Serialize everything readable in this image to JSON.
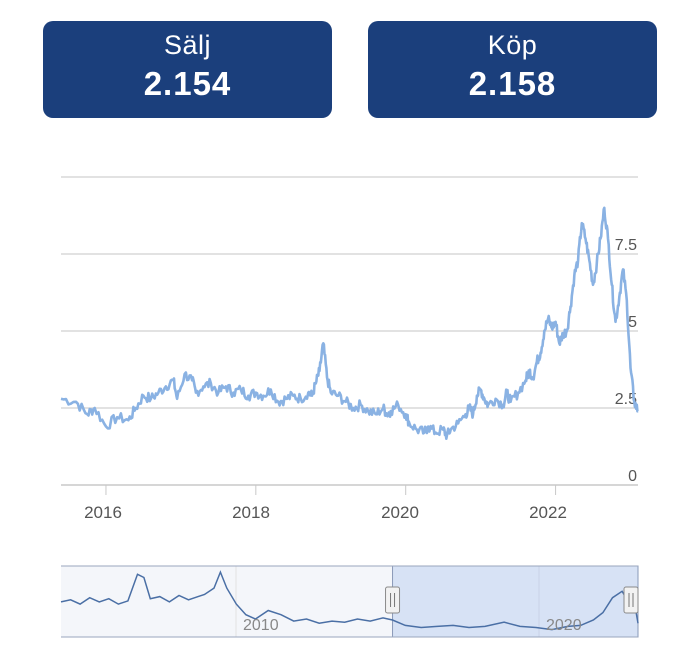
{
  "quote": {
    "sell": {
      "label": "Sälj",
      "value": "2.154"
    },
    "buy": {
      "label": "Köp",
      "value": "2.158"
    }
  },
  "colors": {
    "box": "#1b3f7c",
    "line": "#8ab2e3",
    "navigator_line": "#4a6fa5",
    "navigator_selection": "#d7e2f5",
    "grid": "#d8d8d8",
    "axis_text": "#555555"
  },
  "chart_data": {
    "type": "line",
    "title": "",
    "xlabel": "",
    "ylabel": "",
    "x_range": [
      2015.4,
      2023.1
    ],
    "ylim": [
      0,
      10
    ],
    "y_ticks": [
      "0",
      "2.5",
      "5",
      "7.5"
    ],
    "x_ticks": [
      "2016",
      "2018",
      "2020",
      "2022"
    ],
    "grid": true,
    "series": [
      {
        "points": [
          [
            2015.4,
            2.8
          ],
          [
            2015.6,
            2.7
          ],
          [
            2015.75,
            2.3
          ],
          [
            2015.85,
            2.5
          ],
          [
            2016.0,
            1.9
          ],
          [
            2016.15,
            2.2
          ],
          [
            2016.3,
            2.1
          ],
          [
            2016.4,
            2.5
          ],
          [
            2016.5,
            2.9
          ],
          [
            2016.6,
            2.8
          ],
          [
            2016.7,
            3.0
          ],
          [
            2016.8,
            3.2
          ],
          [
            2016.9,
            3.4
          ],
          [
            2016.95,
            2.8
          ],
          [
            2017.05,
            3.6
          ],
          [
            2017.15,
            3.4
          ],
          [
            2017.2,
            3.0
          ],
          [
            2017.3,
            3.2
          ],
          [
            2017.4,
            3.3
          ],
          [
            2017.5,
            3.0
          ],
          [
            2017.6,
            3.2
          ],
          [
            2017.7,
            3.0
          ],
          [
            2017.8,
            3.1
          ],
          [
            2017.9,
            2.9
          ],
          [
            2018.0,
            3.0
          ],
          [
            2018.1,
            2.9
          ],
          [
            2018.2,
            3.1
          ],
          [
            2018.3,
            2.7
          ],
          [
            2018.4,
            2.8
          ],
          [
            2018.5,
            2.9
          ],
          [
            2018.6,
            2.8
          ],
          [
            2018.7,
            3.0
          ],
          [
            2018.75,
            2.9
          ],
          [
            2018.8,
            3.3
          ],
          [
            2018.85,
            3.7
          ],
          [
            2018.9,
            4.6
          ],
          [
            2018.95,
            3.5
          ],
          [
            2019.0,
            3.0
          ],
          [
            2019.1,
            2.9
          ],
          [
            2019.2,
            2.7
          ],
          [
            2019.3,
            2.5
          ],
          [
            2019.4,
            2.6
          ],
          [
            2019.5,
            2.4
          ],
          [
            2019.6,
            2.3
          ],
          [
            2019.7,
            2.5
          ],
          [
            2019.75,
            2.3
          ],
          [
            2019.8,
            2.4
          ],
          [
            2019.9,
            2.6
          ],
          [
            2020.0,
            2.3
          ],
          [
            2020.05,
            2.0
          ],
          [
            2020.15,
            1.8
          ],
          [
            2020.25,
            1.7
          ],
          [
            2020.3,
            1.9
          ],
          [
            2020.4,
            1.7
          ],
          [
            2020.5,
            1.8
          ],
          [
            2020.55,
            1.6
          ],
          [
            2020.6,
            1.8
          ],
          [
            2020.7,
            2.0
          ],
          [
            2020.8,
            2.3
          ],
          [
            2020.85,
            2.5
          ],
          [
            2020.9,
            2.3
          ],
          [
            2020.95,
            2.9
          ],
          [
            2021.0,
            3.1
          ],
          [
            2021.05,
            2.8
          ],
          [
            2021.1,
            2.6
          ],
          [
            2021.2,
            2.8
          ],
          [
            2021.3,
            2.6
          ],
          [
            2021.35,
            3.0
          ],
          [
            2021.4,
            2.7
          ],
          [
            2021.5,
            3.0
          ],
          [
            2021.6,
            3.4
          ],
          [
            2021.65,
            3.7
          ],
          [
            2021.7,
            3.5
          ],
          [
            2021.75,
            4.0
          ],
          [
            2021.8,
            4.3
          ],
          [
            2021.85,
            5.0
          ],
          [
            2021.9,
            5.4
          ],
          [
            2021.95,
            5.1
          ],
          [
            2022.0,
            5.3
          ],
          [
            2022.05,
            4.6
          ],
          [
            2022.1,
            4.9
          ],
          [
            2022.15,
            5.0
          ],
          [
            2022.2,
            5.8
          ],
          [
            2022.25,
            6.8
          ],
          [
            2022.3,
            7.3
          ],
          [
            2022.35,
            8.5
          ],
          [
            2022.4,
            8.0
          ],
          [
            2022.45,
            7.3
          ],
          [
            2022.5,
            6.5
          ],
          [
            2022.55,
            7.2
          ],
          [
            2022.6,
            8.0
          ],
          [
            2022.65,
            9.0
          ],
          [
            2022.7,
            8.0
          ],
          [
            2022.75,
            6.5
          ],
          [
            2022.8,
            5.3
          ],
          [
            2022.85,
            6.1
          ],
          [
            2022.9,
            7.0
          ],
          [
            2022.95,
            6.0
          ],
          [
            2023.0,
            3.8
          ],
          [
            2023.05,
            2.7
          ],
          [
            2023.1,
            2.4
          ]
        ]
      }
    ],
    "navigator": {
      "x_range": [
        2005.0,
        2023.1
      ],
      "x_ticks": [
        "2010",
        "2020"
      ],
      "selection": [
        2015.4,
        2023.1
      ],
      "points": [
        [
          2005.0,
          3.2
        ],
        [
          2005.3,
          3.4
        ],
        [
          2005.6,
          3.0
        ],
        [
          2005.9,
          3.6
        ],
        [
          2006.2,
          3.2
        ],
        [
          2006.5,
          3.5
        ],
        [
          2006.8,
          3.0
        ],
        [
          2007.1,
          3.3
        ],
        [
          2007.4,
          5.8
        ],
        [
          2007.6,
          5.5
        ],
        [
          2007.8,
          3.5
        ],
        [
          2008.1,
          3.7
        ],
        [
          2008.4,
          3.2
        ],
        [
          2008.7,
          3.8
        ],
        [
          2009.0,
          3.4
        ],
        [
          2009.3,
          3.7
        ],
        [
          2009.5,
          3.9
        ],
        [
          2009.8,
          4.5
        ],
        [
          2010.0,
          6.0
        ],
        [
          2010.2,
          4.5
        ],
        [
          2010.5,
          3.0
        ],
        [
          2010.8,
          2.0
        ],
        [
          2011.1,
          1.6
        ],
        [
          2011.5,
          2.4
        ],
        [
          2011.9,
          2.0
        ],
        [
          2012.3,
          1.4
        ],
        [
          2012.7,
          1.6
        ],
        [
          2013.1,
          1.2
        ],
        [
          2013.5,
          1.4
        ],
        [
          2013.9,
          1.3
        ],
        [
          2014.3,
          1.6
        ],
        [
          2014.7,
          1.4
        ],
        [
          2015.1,
          1.7
        ],
        [
          2015.4,
          1.5
        ],
        [
          2015.8,
          1.0
        ],
        [
          2016.3,
          0.8
        ],
        [
          2016.8,
          0.9
        ],
        [
          2017.3,
          1.0
        ],
        [
          2017.8,
          0.8
        ],
        [
          2018.3,
          0.9
        ],
        [
          2018.9,
          1.3
        ],
        [
          2019.4,
          0.9
        ],
        [
          2019.9,
          0.8
        ],
        [
          2020.4,
          0.6
        ],
        [
          2020.9,
          0.9
        ],
        [
          2021.3,
          1.0
        ],
        [
          2021.7,
          1.5
        ],
        [
          2022.0,
          2.2
        ],
        [
          2022.3,
          3.6
        ],
        [
          2022.6,
          4.2
        ],
        [
          2022.8,
          3.2
        ],
        [
          2022.95,
          3.8
        ],
        [
          2023.1,
          1.2
        ]
      ]
    }
  }
}
